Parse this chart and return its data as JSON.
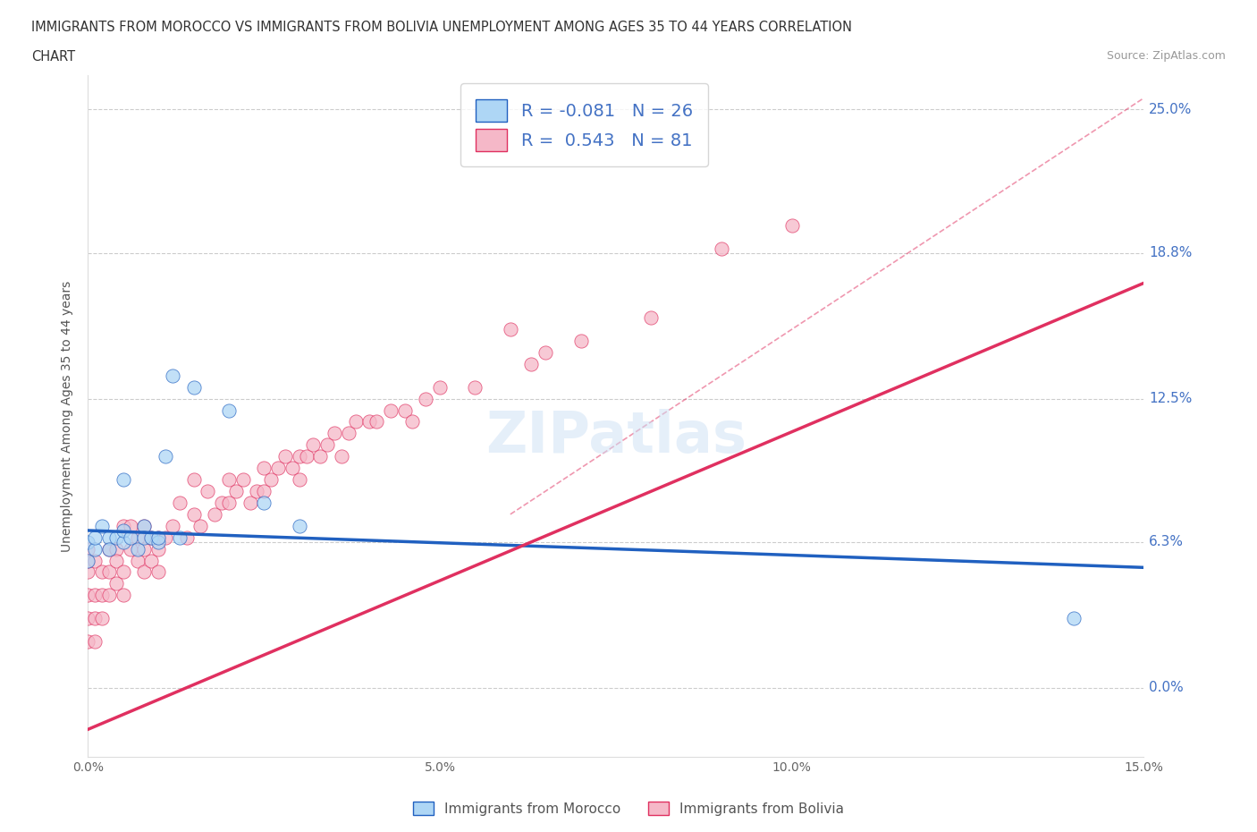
{
  "title_line1": "IMMIGRANTS FROM MOROCCO VS IMMIGRANTS FROM BOLIVIA UNEMPLOYMENT AMONG AGES 35 TO 44 YEARS CORRELATION",
  "title_line2": "CHART",
  "source_text": "Source: ZipAtlas.com",
  "ylabel": "Unemployment Among Ages 35 to 44 years",
  "xlim": [
    0.0,
    0.15
  ],
  "ylim": [
    -0.03,
    0.265
  ],
  "ytick_positions": [
    0.0,
    0.063,
    0.125,
    0.188,
    0.25
  ],
  "ytick_labels": [
    "0.0%",
    "6.3%",
    "12.5%",
    "18.8%",
    "25.0%"
  ],
  "morocco_color": "#aed6f5",
  "bolivia_color": "#f5b8c8",
  "morocco_line_color": "#2060c0",
  "bolivia_line_color": "#e03060",
  "R_morocco": -0.081,
  "N_morocco": 26,
  "R_bolivia": 0.543,
  "N_bolivia": 81,
  "legend_label_1": "Immigrants from Morocco",
  "legend_label_2": "Immigrants from Bolivia",
  "watermark": "ZIPatlas",
  "background_color": "#ffffff",
  "grid_color": "#cccccc",
  "morocco_trend_x0": 0.0,
  "morocco_trend_y0": 0.068,
  "morocco_trend_x1": 0.15,
  "morocco_trend_y1": 0.052,
  "bolivia_trend_x0": 0.0,
  "bolivia_trend_y0": -0.018,
  "bolivia_trend_x1": 0.15,
  "bolivia_trend_y1": 0.175,
  "dashed_line_x0": 0.06,
  "dashed_line_y0": 0.075,
  "dashed_line_x1": 0.15,
  "dashed_line_y1": 0.255,
  "morocco_x": [
    0.0,
    0.0,
    0.001,
    0.001,
    0.002,
    0.003,
    0.003,
    0.004,
    0.005,
    0.005,
    0.006,
    0.007,
    0.008,
    0.008,
    0.009,
    0.01,
    0.01,
    0.011,
    0.012,
    0.013,
    0.015,
    0.02,
    0.025,
    0.03,
    0.14,
    0.005
  ],
  "morocco_y": [
    0.063,
    0.055,
    0.06,
    0.065,
    0.07,
    0.065,
    0.06,
    0.065,
    0.063,
    0.068,
    0.065,
    0.06,
    0.07,
    0.065,
    0.065,
    0.063,
    0.065,
    0.1,
    0.135,
    0.065,
    0.13,
    0.12,
    0.08,
    0.07,
    0.03,
    0.09
  ],
  "bolivia_x": [
    0.0,
    0.0,
    0.0,
    0.0,
    0.0,
    0.0,
    0.001,
    0.001,
    0.001,
    0.001,
    0.002,
    0.002,
    0.002,
    0.003,
    0.003,
    0.003,
    0.004,
    0.004,
    0.004,
    0.005,
    0.005,
    0.005,
    0.006,
    0.006,
    0.007,
    0.007,
    0.008,
    0.008,
    0.008,
    0.009,
    0.009,
    0.01,
    0.01,
    0.01,
    0.011,
    0.012,
    0.013,
    0.014,
    0.015,
    0.015,
    0.016,
    0.017,
    0.018,
    0.019,
    0.02,
    0.02,
    0.021,
    0.022,
    0.023,
    0.024,
    0.025,
    0.025,
    0.026,
    0.027,
    0.028,
    0.029,
    0.03,
    0.03,
    0.031,
    0.032,
    0.033,
    0.034,
    0.035,
    0.036,
    0.037,
    0.038,
    0.04,
    0.041,
    0.043,
    0.045,
    0.046,
    0.048,
    0.05,
    0.055,
    0.06,
    0.063,
    0.065,
    0.07,
    0.08,
    0.09,
    0.1
  ],
  "bolivia_y": [
    0.04,
    0.05,
    0.055,
    0.06,
    0.02,
    0.03,
    0.04,
    0.055,
    0.03,
    0.02,
    0.04,
    0.05,
    0.03,
    0.05,
    0.06,
    0.04,
    0.06,
    0.055,
    0.045,
    0.07,
    0.05,
    0.04,
    0.06,
    0.07,
    0.055,
    0.065,
    0.07,
    0.06,
    0.05,
    0.065,
    0.055,
    0.065,
    0.05,
    0.06,
    0.065,
    0.07,
    0.08,
    0.065,
    0.09,
    0.075,
    0.07,
    0.085,
    0.075,
    0.08,
    0.09,
    0.08,
    0.085,
    0.09,
    0.08,
    0.085,
    0.095,
    0.085,
    0.09,
    0.095,
    0.1,
    0.095,
    0.1,
    0.09,
    0.1,
    0.105,
    0.1,
    0.105,
    0.11,
    0.1,
    0.11,
    0.115,
    0.115,
    0.115,
    0.12,
    0.12,
    0.115,
    0.125,
    0.13,
    0.13,
    0.155,
    0.14,
    0.145,
    0.15,
    0.16,
    0.19,
    0.2
  ]
}
